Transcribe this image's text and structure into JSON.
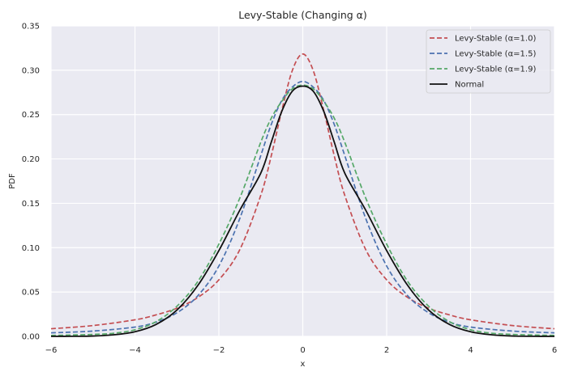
{
  "chart_data": {
    "type": "line",
    "title": "Levy-Stable (Changing α)",
    "xlabel": "x",
    "ylabel": "PDF",
    "xlim": [
      -6,
      6
    ],
    "ylim": [
      0,
      0.35
    ],
    "xticks": [
      -6,
      -4,
      -2,
      0,
      2,
      4,
      6
    ],
    "xtick_labels": [
      "−6",
      "−4",
      "−2",
      "0",
      "2",
      "4",
      "6"
    ],
    "yticks": [
      0.0,
      0.05,
      0.1,
      0.15,
      0.2,
      0.25,
      0.3,
      0.35
    ],
    "ytick_labels": [
      "0.00",
      "0.05",
      "0.10",
      "0.15",
      "0.20",
      "0.25",
      "0.30",
      "0.35"
    ],
    "grid": true,
    "legend_position": "top-right",
    "background": "#eaeaf2",
    "series": [
      {
        "name": "Levy-Stable (α=1.0)",
        "color": "#c44e52",
        "dash": true,
        "x": [
          -6,
          -5,
          -4,
          -3.5,
          -3,
          -2.5,
          -2,
          -1.5,
          -1,
          -0.75,
          -0.5,
          -0.25,
          0,
          0.25,
          0.5,
          0.75,
          1,
          1.5,
          2,
          2.5,
          3,
          3.5,
          4,
          5,
          6
        ],
        "y": [
          0.0086,
          0.0122,
          0.0187,
          0.0242,
          0.0318,
          0.0439,
          0.0637,
          0.0979,
          0.1592,
          0.2037,
          0.2546,
          0.2996,
          0.3183,
          0.2996,
          0.2546,
          0.2037,
          0.1592,
          0.0979,
          0.0637,
          0.0439,
          0.0318,
          0.0242,
          0.0187,
          0.0122,
          0.0086
        ]
      },
      {
        "name": "Levy-Stable (α=1.5)",
        "color": "#4c72b0",
        "dash": true,
        "x": [
          -6,
          -5,
          -4,
          -3.5,
          -3,
          -2.5,
          -2,
          -1.5,
          -1,
          -0.75,
          -0.5,
          -0.25,
          0,
          0.25,
          0.5,
          0.75,
          1,
          1.5,
          2,
          2.5,
          3,
          3.5,
          4,
          5,
          6
        ],
        "y": [
          0.004,
          0.006,
          0.0105,
          0.016,
          0.0266,
          0.0459,
          0.0793,
          0.133,
          0.204,
          0.239,
          0.266,
          0.281,
          0.2874,
          0.281,
          0.266,
          0.239,
          0.204,
          0.133,
          0.0793,
          0.0459,
          0.0266,
          0.016,
          0.0105,
          0.006,
          0.004
        ]
      },
      {
        "name": "Levy-Stable (α=1.9)",
        "color": "#55a868",
        "dash": true,
        "x": [
          -6,
          -5,
          -4.5,
          -4,
          -3.5,
          -3,
          -2.5,
          -2,
          -1.5,
          -1,
          -0.75,
          -0.5,
          -0.25,
          0,
          0.25,
          0.5,
          0.75,
          1,
          1.5,
          2,
          2.5,
          3,
          3.5,
          4,
          4.5,
          5,
          6
        ],
        "y": [
          0.001,
          0.0022,
          0.0036,
          0.0075,
          0.0165,
          0.034,
          0.062,
          0.104,
          0.156,
          0.219,
          0.246,
          0.265,
          0.279,
          0.2832,
          0.279,
          0.265,
          0.246,
          0.219,
          0.156,
          0.104,
          0.062,
          0.034,
          0.0165,
          0.0075,
          0.0036,
          0.0022,
          0.001
        ]
      },
      {
        "name": "Normal",
        "color": "#111111",
        "dash": false,
        "x": [
          -6,
          -5.5,
          -5,
          -4.5,
          -4,
          -3.5,
          -3,
          -2.5,
          -2,
          -1.5,
          -1,
          -0.75,
          -0.5,
          -0.25,
          0,
          0.25,
          0.5,
          0.75,
          1,
          1.5,
          2,
          2.5,
          3,
          3.5,
          4,
          4.5,
          5,
          5.5,
          6
        ],
        "y": [
          0.0,
          0.0001,
          0.0004,
          0.0018,
          0.0052,
          0.0134,
          0.0297,
          0.0575,
          0.0967,
          0.1423,
          0.1841,
          0.2191,
          0.2537,
          0.2763,
          0.2821,
          0.2763,
          0.2537,
          0.2191,
          0.1841,
          0.1423,
          0.0967,
          0.0575,
          0.0297,
          0.0134,
          0.0052,
          0.0018,
          0.0004,
          0.0001,
          0.0
        ]
      }
    ]
  }
}
